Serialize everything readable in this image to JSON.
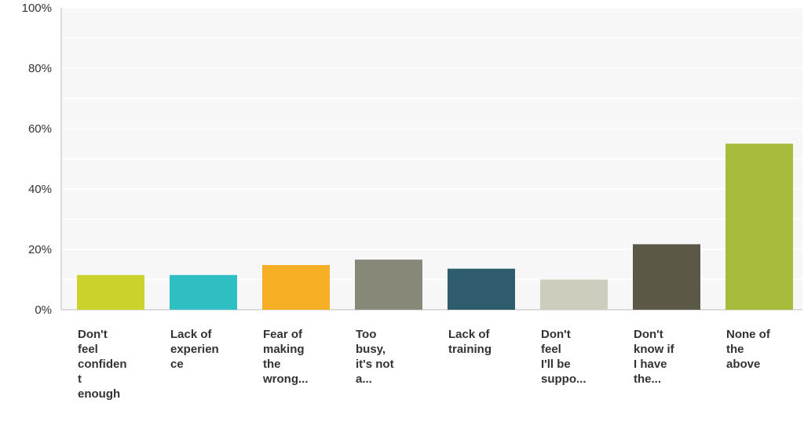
{
  "chart_data": {
    "type": "bar",
    "title": "",
    "xlabel": "",
    "ylabel": "",
    "ylim": [
      0,
      100
    ],
    "y_ticks": [
      "0%",
      "20%",
      "40%",
      "60%",
      "80%",
      "100%"
    ],
    "y_tick_values": [
      0,
      20,
      40,
      60,
      80,
      100
    ],
    "grid": true,
    "legend": "none",
    "categories": [
      "Don't feel confident enough",
      "Lack of experience",
      "Fear of making the wrong...",
      "Too busy, it's not a...",
      "Lack of training",
      "Don't feel I'll be suppo...",
      "Don't know if I have the...",
      "None of the above"
    ],
    "category_label_lines": [
      [
        "Don't",
        "feel",
        "confiden",
        "t",
        "enough"
      ],
      [
        "Lack of",
        "experien",
        "ce"
      ],
      [
        "Fear of",
        "making",
        "the",
        "wrong..."
      ],
      [
        "Too",
        "busy,",
        "it's not",
        "a..."
      ],
      [
        "Lack of",
        "training"
      ],
      [
        "Don't",
        "feel",
        "I'll be",
        "suppo..."
      ],
      [
        "Don't",
        "know if",
        "I have",
        "the..."
      ],
      [
        "None of",
        "the",
        "above"
      ]
    ],
    "values": [
      11.5,
      11.5,
      14.8,
      16.6,
      13.6,
      10.0,
      21.7,
      55.0
    ],
    "colors": [
      "#cbd22c",
      "#2fbfc2",
      "#f6af24",
      "#878878",
      "#2e5c6c",
      "#cecdbd",
      "#5b5848",
      "#a8bb3b"
    ]
  }
}
